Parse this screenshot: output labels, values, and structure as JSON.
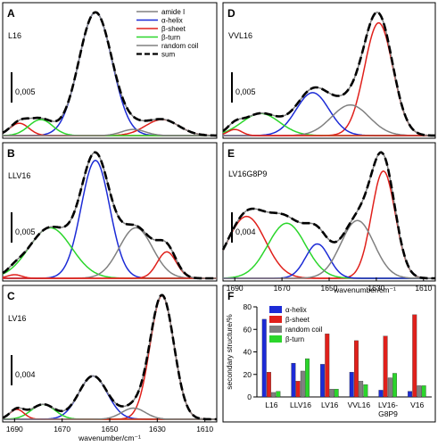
{
  "colors": {
    "amide": "#808080",
    "helix": "#1c2bd6",
    "sheet": "#e0201b",
    "turn": "#2bd62b",
    "coil": "#808080",
    "sum": "#000000"
  },
  "spectra_legend": [
    "amide I",
    "α-helix",
    "β-sheet",
    "β-turn",
    "random coil",
    "sum"
  ],
  "chart_data": [
    {
      "panel": "A",
      "type": "line",
      "sample": "L16",
      "scale_bar": "0,005",
      "xlim": [
        1695,
        1605
      ],
      "ticks": [],
      "xlabel": "",
      "bands": [
        {
          "component": "α-helix",
          "center": 1656,
          "height": 1.0,
          "width": 7
        },
        {
          "component": "β-sheet",
          "center": 1688,
          "height": 0.1,
          "width": 4
        },
        {
          "component": "β-sheet",
          "center": 1628,
          "height": 0.13,
          "width": 7
        },
        {
          "component": "β-turn",
          "center": 1679,
          "height": 0.13,
          "width": 5
        },
        {
          "component": "random coil",
          "center": 1640,
          "height": 0.05,
          "width": 5
        }
      ]
    },
    {
      "panel": "B",
      "type": "line",
      "sample": "LLV16",
      "scale_bar": "0,005",
      "xlim": [
        1695,
        1605
      ],
      "ticks": [],
      "xlabel": "",
      "bands": [
        {
          "component": "α-helix",
          "center": 1656,
          "height": 0.98,
          "width": 6
        },
        {
          "component": "β-turn",
          "center": 1675,
          "height": 0.42,
          "width": 9
        },
        {
          "component": "random coil",
          "center": 1639,
          "height": 0.42,
          "width": 7
        },
        {
          "component": "β-sheet",
          "center": 1626,
          "height": 0.22,
          "width": 4
        },
        {
          "component": "β-sheet",
          "center": 1690,
          "height": 0.03,
          "width": 3
        }
      ]
    },
    {
      "panel": "C",
      "type": "line",
      "sample": "LV16",
      "scale_bar": "0,004",
      "xlim": [
        1695,
        1605
      ],
      "ticks": [
        1690,
        1670,
        1650,
        1630,
        1610
      ],
      "xlabel": "wavenumber/cm⁻¹",
      "bands": [
        {
          "component": "β-sheet",
          "center": 1628,
          "height": 1.0,
          "width": 5
        },
        {
          "component": "α-helix",
          "center": 1657,
          "height": 0.35,
          "width": 6
        },
        {
          "component": "β-turn",
          "center": 1678,
          "height": 0.12,
          "width": 5
        },
        {
          "component": "β-sheet",
          "center": 1689,
          "height": 0.08,
          "width": 3
        },
        {
          "component": "random coil",
          "center": 1640,
          "height": 0.09,
          "width": 5
        }
      ]
    },
    {
      "panel": "D",
      "type": "line",
      "sample": "VVL16",
      "scale_bar": "0,005",
      "xlim": [
        1695,
        1605
      ],
      "ticks": [],
      "xlabel": "",
      "bands": [
        {
          "component": "β-sheet",
          "center": 1629,
          "height": 0.92,
          "width": 6
        },
        {
          "component": "α-helix",
          "center": 1657,
          "height": 0.35,
          "width": 7
        },
        {
          "component": "β-turn",
          "center": 1679,
          "height": 0.18,
          "width": 8
        },
        {
          "component": "random coil",
          "center": 1641,
          "height": 0.25,
          "width": 8
        },
        {
          "component": "β-sheet",
          "center": 1690,
          "height": 0.05,
          "width": 3
        }
      ]
    },
    {
      "panel": "E",
      "type": "line",
      "sample": "LV16G8P9",
      "scale_bar": "0,004",
      "xlim": [
        1695,
        1605
      ],
      "ticks": [
        1690,
        1670,
        1650,
        1630,
        1610
      ],
      "xlabel": "wavenumber/cm⁻¹",
      "bands": [
        {
          "component": "β-sheet",
          "center": 1627,
          "height": 0.78,
          "width": 5
        },
        {
          "component": "β-sheet",
          "center": 1685,
          "height": 0.45,
          "width": 8
        },
        {
          "component": "β-turn",
          "center": 1668,
          "height": 0.4,
          "width": 8
        },
        {
          "component": "α-helix",
          "center": 1655,
          "height": 0.25,
          "width": 5
        },
        {
          "component": "random coil",
          "center": 1638,
          "height": 0.42,
          "width": 7
        }
      ]
    },
    {
      "panel": "F",
      "type": "bar",
      "ylabel": "secondary structure/%",
      "categories": [
        "L16",
        "LLV16",
        "LV16",
        "VVL16",
        "LV16-\nG8P9",
        "V16"
      ],
      "ylim": [
        0,
        80
      ],
      "ticks": [
        0,
        20,
        40,
        60,
        80
      ],
      "legend": "top-left",
      "series": [
        {
          "name": "α-helix",
          "values": [
            69,
            30,
            29,
            22,
            6,
            5
          ]
        },
        {
          "name": "β-sheet",
          "values": [
            22,
            14,
            56,
            50,
            54,
            73
          ]
        },
        {
          "name": "random coil",
          "values": [
            4,
            23,
            7,
            14,
            17,
            10
          ]
        },
        {
          "name": "β-turn",
          "values": [
            5,
            34,
            7,
            11,
            21,
            10
          ]
        }
      ]
    }
  ]
}
